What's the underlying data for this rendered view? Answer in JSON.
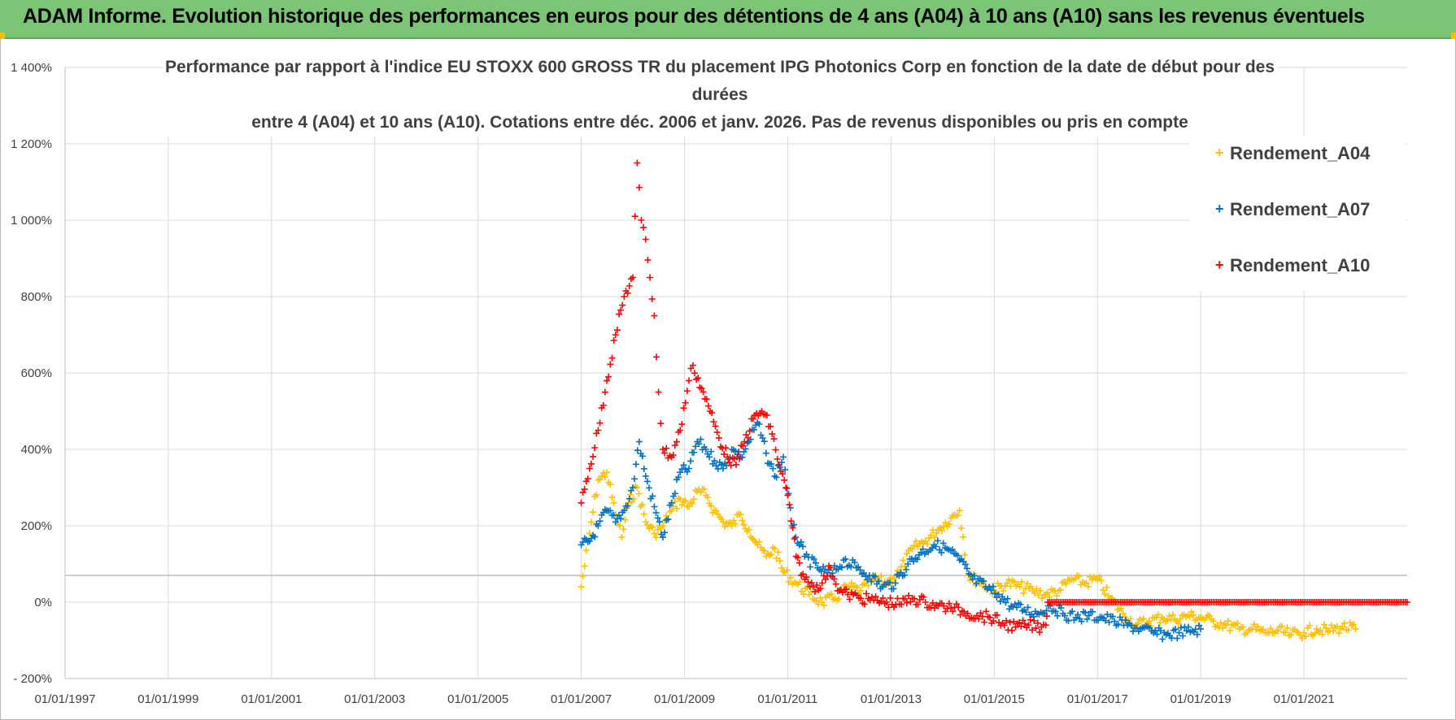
{
  "banner": {
    "title": "ADAM Informe. Evolution historique des performances en euros pour des détentions de 4 ans (A04) à 10 ans (A10) sans les revenus éventuels"
  },
  "chart_data": {
    "type": "scatter",
    "title_line1": "Performance par rapport à l'indice EU STOXX 600 GROSS TR  du placement IPG Photonics Corp en fonction de la date de début pour des durées",
    "title_line2": "entre 4 (A04) et 10 ans (A10). Cotations entre déc. 2006 et janv. 2026. Pas de revenus disponibles ou pris en compte",
    "x_ticks": [
      "01/01/1997",
      "01/01/1999",
      "01/01/2001",
      "01/01/2003",
      "01/01/2005",
      "01/01/2007",
      "01/01/2009",
      "01/01/2011",
      "01/01/2013",
      "01/01/2015",
      "01/01/2017",
      "01/01/2019",
      "01/01/2021"
    ],
    "y_ticks": [
      "- 200%",
      "0%",
      "200%",
      "400%",
      "600%",
      "800%",
      "1 000%",
      "1 200%",
      "1 400%"
    ],
    "xlim": [
      "1997-01-01",
      "2023-01-01"
    ],
    "ylim": [
      -200,
      1400
    ],
    "grid": true,
    "legend_position": "top-right",
    "series": [
      {
        "name": "Rendement_A04",
        "color": "#ffc000",
        "points": [
          [
            "2007-01-01",
            40
          ],
          [
            "2007-03-01",
            180
          ],
          [
            "2007-05-01",
            320
          ],
          [
            "2007-07-01",
            340
          ],
          [
            "2007-09-01",
            230
          ],
          [
            "2007-10-15",
            170
          ],
          [
            "2007-12-01",
            260
          ],
          [
            "2008-02-01",
            300
          ],
          [
            "2008-04-01",
            210
          ],
          [
            "2008-06-01",
            180
          ],
          [
            "2008-08-01",
            200
          ],
          [
            "2008-10-01",
            240
          ],
          [
            "2008-12-01",
            270
          ],
          [
            "2009-02-01",
            250
          ],
          [
            "2009-04-01",
            290
          ],
          [
            "2009-06-01",
            280
          ],
          [
            "2009-08-01",
            240
          ],
          [
            "2009-10-01",
            210
          ],
          [
            "2009-12-01",
            200
          ],
          [
            "2010-02-01",
            230
          ],
          [
            "2010-04-01",
            190
          ],
          [
            "2010-06-01",
            150
          ],
          [
            "2010-08-01",
            120
          ],
          [
            "2010-10-01",
            140
          ],
          [
            "2010-12-01",
            80
          ],
          [
            "2011-03-01",
            50
          ],
          [
            "2011-06-01",
            20
          ],
          [
            "2011-09-01",
            0
          ],
          [
            "2011-12-01",
            10
          ],
          [
            "2012-03-01",
            40
          ],
          [
            "2012-06-01",
            30
          ],
          [
            "2012-09-01",
            60
          ],
          [
            "2012-12-01",
            50
          ],
          [
            "2013-03-01",
            80
          ],
          [
            "2013-06-01",
            140
          ],
          [
            "2013-09-01",
            160
          ],
          [
            "2013-12-01",
            190
          ],
          [
            "2014-03-01",
            220
          ],
          [
            "2014-05-01",
            240
          ],
          [
            "2014-07-01",
            70
          ],
          [
            "2014-10-01",
            50
          ],
          [
            "2015-01-01",
            30
          ],
          [
            "2015-04-01",
            50
          ],
          [
            "2015-07-01",
            40
          ],
          [
            "2015-10-01",
            30
          ],
          [
            "2016-01-01",
            20
          ],
          [
            "2016-04-01",
            30
          ],
          [
            "2016-07-01",
            60
          ],
          [
            "2016-10-01",
            50
          ],
          [
            "2017-01-01",
            60
          ],
          [
            "2017-04-01",
            10
          ],
          [
            "2017-07-01",
            -30
          ],
          [
            "2017-10-01",
            -60
          ],
          [
            "2018-01-01",
            -50
          ],
          [
            "2018-04-01",
            -40
          ],
          [
            "2018-07-01",
            -45
          ],
          [
            "2018-10-01",
            -35
          ],
          [
            "2019-01-01",
            -40
          ],
          [
            "2019-04-01",
            -50
          ],
          [
            "2019-07-01",
            -60
          ],
          [
            "2019-10-01",
            -70
          ],
          [
            "2020-01-01",
            -70
          ],
          [
            "2020-04-01",
            -80
          ],
          [
            "2020-07-01",
            -75
          ],
          [
            "2020-10-01",
            -85
          ],
          [
            "2021-01-01",
            -80
          ],
          [
            "2021-04-01",
            -70
          ],
          [
            "2021-07-01",
            -75
          ],
          [
            "2021-10-01",
            -65
          ],
          [
            "2022-01-01",
            -70
          ]
        ]
      },
      {
        "name": "Rendement_A07",
        "color": "#0070c0",
        "points": [
          [
            "2007-01-01",
            150
          ],
          [
            "2007-03-01",
            160
          ],
          [
            "2007-05-01",
            200
          ],
          [
            "2007-07-01",
            240
          ],
          [
            "2007-09-01",
            210
          ],
          [
            "2007-11-01",
            240
          ],
          [
            "2008-01-01",
            300
          ],
          [
            "2008-02-15",
            420
          ],
          [
            "2008-04-01",
            330
          ],
          [
            "2008-06-01",
            250
          ],
          [
            "2008-08-01",
            170
          ],
          [
            "2008-10-01",
            260
          ],
          [
            "2008-12-01",
            340
          ],
          [
            "2009-02-01",
            350
          ],
          [
            "2009-04-01",
            420
          ],
          [
            "2009-06-01",
            400
          ],
          [
            "2009-08-01",
            370
          ],
          [
            "2009-10-01",
            350
          ],
          [
            "2009-12-01",
            400
          ],
          [
            "2010-02-01",
            380
          ],
          [
            "2010-04-01",
            420
          ],
          [
            "2010-06-01",
            470
          ],
          [
            "2010-08-01",
            390
          ],
          [
            "2010-10-01",
            330
          ],
          [
            "2010-12-01",
            380
          ],
          [
            "2011-02-01",
            200
          ],
          [
            "2011-05-01",
            120
          ],
          [
            "2011-08-01",
            90
          ],
          [
            "2011-11-01",
            70
          ],
          [
            "2012-02-01",
            110
          ],
          [
            "2012-05-01",
            90
          ],
          [
            "2012-08-01",
            70
          ],
          [
            "2012-11-01",
            40
          ],
          [
            "2013-02-01",
            50
          ],
          [
            "2013-05-01",
            100
          ],
          [
            "2013-08-01",
            130
          ],
          [
            "2013-11-01",
            150
          ],
          [
            "2014-02-01",
            140
          ],
          [
            "2014-05-01",
            110
          ],
          [
            "2014-08-01",
            60
          ],
          [
            "2014-11-01",
            40
          ],
          [
            "2015-02-01",
            20
          ],
          [
            "2015-05-01",
            -10
          ],
          [
            "2015-08-01",
            -20
          ],
          [
            "2015-11-01",
            -30
          ],
          [
            "2016-02-01",
            -10
          ],
          [
            "2016-05-01",
            -30
          ],
          [
            "2016-08-01",
            -40
          ],
          [
            "2016-11-01",
            -35
          ],
          [
            "2017-02-01",
            -40
          ],
          [
            "2017-05-01",
            -50
          ],
          [
            "2017-08-01",
            -60
          ],
          [
            "2017-11-01",
            -70
          ],
          [
            "2018-02-01",
            -80
          ],
          [
            "2018-05-01",
            -85
          ],
          [
            "2018-08-01",
            -80
          ],
          [
            "2018-11-01",
            -75
          ],
          [
            "2019-01-01",
            -70
          ]
        ]
      },
      {
        "name": "Rendement_A10",
        "color": "#ff0000",
        "points": [
          [
            "2007-01-01",
            260
          ],
          [
            "2007-03-01",
            350
          ],
          [
            "2007-05-01",
            450
          ],
          [
            "2007-07-01",
            580
          ],
          [
            "2007-09-01",
            700
          ],
          [
            "2007-11-01",
            800
          ],
          [
            "2008-01-01",
            850
          ],
          [
            "2008-02-01",
            1150
          ],
          [
            "2008-03-01",
            1000
          ],
          [
            "2008-04-01",
            950
          ],
          [
            "2008-05-01",
            850
          ],
          [
            "2008-06-01",
            750
          ],
          [
            "2008-07-01",
            550
          ],
          [
            "2008-08-01",
            400
          ],
          [
            "2008-10-01",
            380
          ],
          [
            "2008-12-01",
            450
          ],
          [
            "2009-02-01",
            580
          ],
          [
            "2009-03-01",
            620
          ],
          [
            "2009-05-01",
            560
          ],
          [
            "2009-07-01",
            500
          ],
          [
            "2009-09-01",
            430
          ],
          [
            "2009-11-01",
            380
          ],
          [
            "2010-01-01",
            360
          ],
          [
            "2010-03-01",
            420
          ],
          [
            "2010-05-01",
            480
          ],
          [
            "2010-07-01",
            500
          ],
          [
            "2010-09-01",
            460
          ],
          [
            "2010-11-01",
            360
          ],
          [
            "2011-01-01",
            280
          ],
          [
            "2011-03-01",
            120
          ],
          [
            "2011-05-01",
            60
          ],
          [
            "2011-07-01",
            40
          ],
          [
            "2011-09-01",
            50
          ],
          [
            "2011-11-01",
            90
          ],
          [
            "2012-01-01",
            30
          ],
          [
            "2012-03-01",
            20
          ],
          [
            "2012-06-01",
            10
          ],
          [
            "2012-09-01",
            5
          ],
          [
            "2012-12-01",
            0
          ],
          [
            "2013-03-01",
            -5
          ],
          [
            "2013-06-01",
            10
          ],
          [
            "2013-09-01",
            0
          ],
          [
            "2013-12-01",
            -10
          ],
          [
            "2014-03-01",
            -15
          ],
          [
            "2014-06-01",
            -25
          ],
          [
            "2014-09-01",
            -35
          ],
          [
            "2014-12-01",
            -40
          ],
          [
            "2015-03-01",
            -55
          ],
          [
            "2015-06-01",
            -65
          ],
          [
            "2015-09-01",
            -60
          ],
          [
            "2015-12-01",
            -65
          ],
          [
            "2016-01-01",
            -60
          ],
          [
            "2016-01-15",
            0
          ],
          [
            "2017-01-01",
            0
          ],
          [
            "2018-01-01",
            0
          ],
          [
            "2019-01-01",
            0
          ],
          [
            "2020-01-01",
            0
          ],
          [
            "2021-01-01",
            0
          ],
          [
            "2022-01-01",
            0
          ],
          [
            "2023-01-01",
            0
          ]
        ]
      }
    ]
  }
}
